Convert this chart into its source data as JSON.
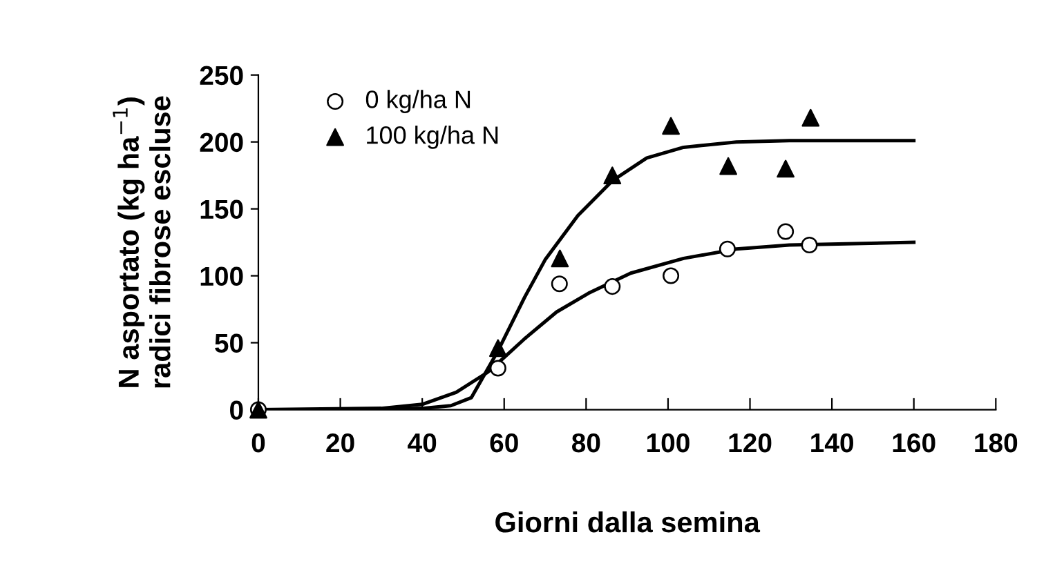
{
  "chart_data": {
    "type": "scatter",
    "xlabel": "Giorni dalla semina",
    "ylabel": "N asportato (kg ha$^{−1}$)\nradici fibrose escluse",
    "xlim": [
      0,
      180
    ],
    "xticks": [
      0,
      20,
      40,
      60,
      80,
      100,
      120,
      140,
      160,
      180
    ],
    "ylim": [
      0,
      250
    ],
    "yticks": [
      0,
      50,
      100,
      150,
      200,
      250
    ],
    "grid": false,
    "legend": "top left",
    "series": [
      {
        "name": "0 kg/ha N",
        "marker": "circle",
        "color": "#ffffff",
        "x": [
          0,
          58.5,
          73.5,
          86.4,
          100.7,
          114.5,
          128.7,
          134.5
        ],
        "values": [
          0,
          31,
          94,
          92,
          100,
          120,
          133,
          123
        ]
      },
      {
        "name": "100 kg/ha N",
        "marker": "triangle",
        "color": "#000000",
        "x": [
          0,
          58.5,
          73.6,
          86.4,
          100.7,
          114.7,
          128.7,
          134.8
        ],
        "values": [
          0,
          46,
          113,
          175,
          212,
          182,
          180,
          218
        ]
      },
      {
        "type": "line",
        "marker": "none",
        "color": "#000000",
        "x": [
          0,
          30,
          40,
          48.3,
          56,
          60,
          65,
          72.8,
          80.6,
          90.9,
          103.8,
          116.7,
          129.6,
          160
        ],
        "values": [
          0,
          1,
          4,
          13,
          28,
          39,
          53,
          73,
          87,
          102,
          113,
          120,
          123,
          125
        ]
      },
      {
        "type": "line",
        "marker": "none",
        "color": "#000000",
        "x": [
          0,
          30,
          40,
          47,
          52,
          58.5,
          65,
          70,
          78,
          86.4,
          94.8,
          103.8,
          116.7,
          129.6,
          160
        ],
        "values": [
          0,
          0,
          1,
          3,
          9,
          44,
          84,
          112,
          145,
          171,
          188,
          196,
          200,
          201,
          201
        ]
      }
    ]
  }
}
